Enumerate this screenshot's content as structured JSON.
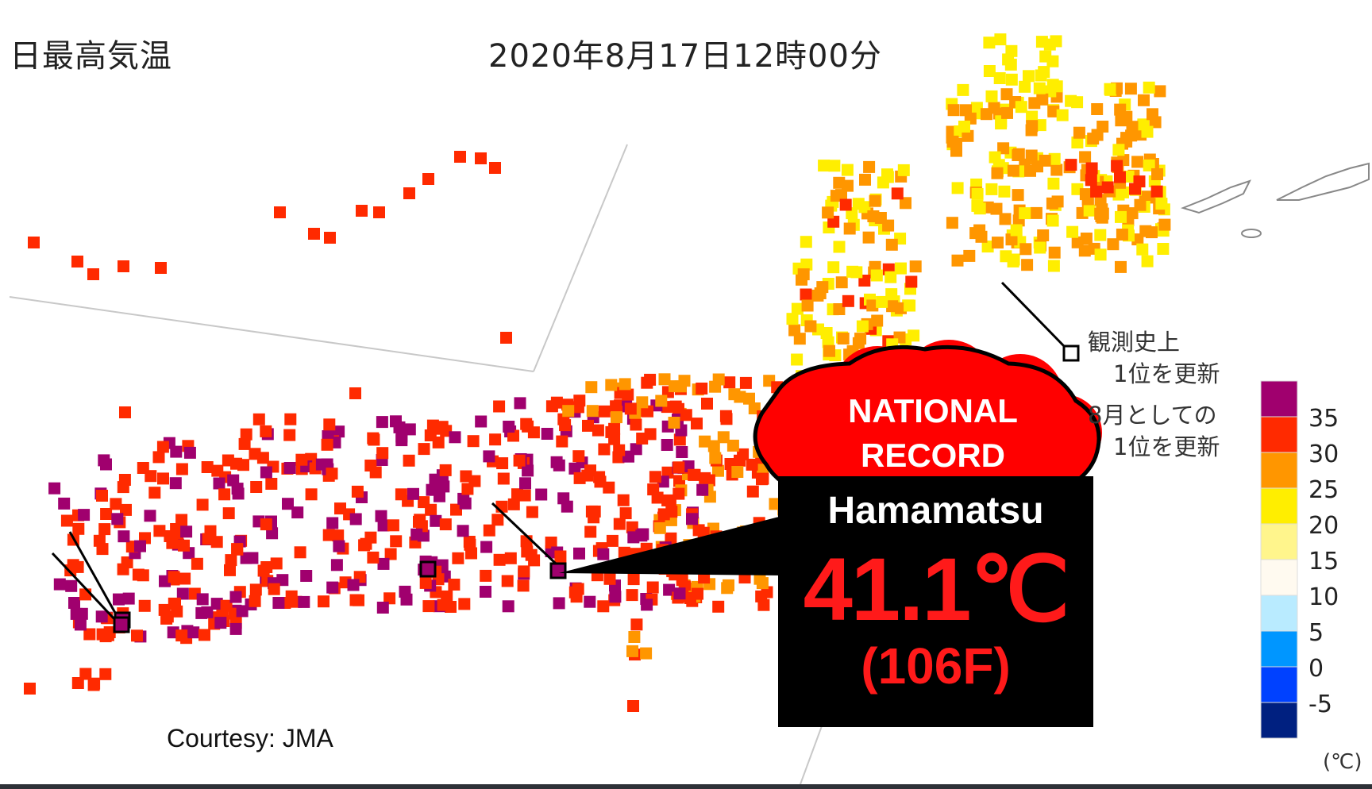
{
  "header": {
    "title": "日最高気温",
    "datetime": "2020年8月17日12時00分"
  },
  "legend": {
    "unit": "(℃)",
    "bins": [
      {
        "label": "35",
        "color": "#a0006e"
      },
      {
        "label": "30",
        "color": "#ff2a00"
      },
      {
        "label": "25",
        "color": "#ff9600"
      },
      {
        "label": "20",
        "color": "#ffee00"
      },
      {
        "label": "15",
        "color": "#fff58c"
      },
      {
        "label": "10",
        "color": "#fffaf0"
      },
      {
        "label": "5",
        "color": "#b9ebff"
      },
      {
        "label": "0",
        "color": "#0096ff"
      },
      {
        "label": "-5",
        "color": "#0041ff"
      },
      {
        "label": "",
        "color": "#002080"
      }
    ]
  },
  "notes": {
    "all_time_line1": "観測史上",
    "all_time_line2": "1位を更新",
    "month_line1": "8月としての",
    "month_line2": "1位を更新"
  },
  "callout": {
    "record_line1": "NATIONAL",
    "record_line2": "RECORD",
    "city": "Hamamatsu",
    "temp_c": "41.1℃",
    "temp_f": "(106F)"
  },
  "credit": "Courtesy: JMA",
  "colors": {
    "over35": "#a0006e",
    "from30": "#ff2a00",
    "from25": "#ff9600",
    "from20": "#ffee00",
    "callout_bg": "#000000",
    "callout_text": "#ff1a1a",
    "cloud_fill": "#ff0000"
  }
}
